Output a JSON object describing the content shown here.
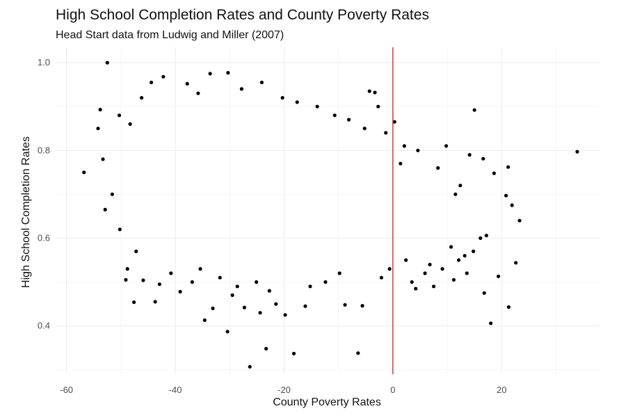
{
  "chart_data": {
    "type": "scatter",
    "title": "High School Completion Rates and County Poverty Rates",
    "subtitle": "Head Start data from Ludwig and Miller (2007)",
    "xlabel": "County Poverty Rates",
    "ylabel": "High School Completion Rates",
    "xlim": [
      -62,
      38
    ],
    "ylim": [
      0.29,
      1.035
    ],
    "x_ticks": [
      -60,
      -40,
      -20,
      0,
      20
    ],
    "y_ticks": [
      0.4,
      0.6,
      0.8,
      1.0
    ],
    "x_tick_labels": [
      "-60",
      "-40",
      "-20",
      "0",
      "20"
    ],
    "y_tick_labels": [
      "0.4",
      "0.6",
      "0.8",
      "1.0"
    ],
    "grid": true,
    "vline": {
      "x": 0,
      "color": "#e0151b"
    },
    "point_color": "#000000",
    "points": [
      [
        -52.5,
        1.0
      ],
      [
        -56.8,
        0.75
      ],
      [
        -52.9,
        0.665
      ],
      [
        33.9,
        0.797
      ],
      [
        15,
        0.892
      ],
      [
        0.3,
        0.865
      ],
      [
        -26.3,
        0.307
      ],
      [
        -18.2,
        0.337
      ],
      [
        -6.4,
        0.338
      ],
      [
        -23.3,
        0.348
      ],
      [
        -30.4,
        0.387
      ],
      [
        18,
        0.406
      ],
      [
        -34.6,
        0.413
      ],
      [
        -43.7,
        0.455
      ],
      [
        -47.6,
        0.454
      ],
      [
        21.3,
        0.443
      ],
      [
        23.3,
        0.64
      ],
      [
        21.9,
        0.675
      ],
      [
        20.8,
        0.697
      ],
      [
        22.6,
        0.544
      ],
      [
        21.2,
        0.762
      ],
      [
        19.4,
        0.513
      ],
      [
        18.6,
        0.748
      ],
      [
        16.6,
        0.781
      ],
      [
        16.8,
        0.475
      ],
      [
        17.2,
        0.606
      ],
      [
        9.8,
        0.81
      ],
      [
        8.3,
        0.76
      ],
      [
        -3.3,
        0.932
      ],
      [
        -4.3,
        0.935
      ],
      [
        -2.7,
        0.9
      ],
      [
        -33.6,
        0.975
      ],
      [
        -30.3,
        0.977
      ],
      [
        -42.2,
        0.968
      ],
      [
        -44.4,
        0.955
      ],
      [
        -37.8,
        0.952
      ],
      [
        -24.1,
        0.955
      ],
      [
        -48.3,
        0.86
      ],
      [
        -53.8,
        0.893
      ],
      [
        -49.1,
        0.505
      ],
      [
        -45.9,
        0.504
      ],
      [
        -33.1,
        0.44
      ],
      [
        -29.5,
        0.47
      ],
      [
        -27.3,
        0.442
      ],
      [
        -21.5,
        0.45
      ],
      [
        -19.8,
        0.425
      ],
      [
        -16.1,
        0.445
      ],
      [
        -8.8,
        0.448
      ],
      [
        -5.6,
        0.446
      ],
      [
        -24.4,
        0.43
      ],
      [
        -39.1,
        0.478
      ],
      [
        -42.9,
        0.495
      ],
      [
        4.2,
        0.485
      ],
      [
        7.5,
        0.49
      ],
      [
        11.2,
        0.505
      ],
      [
        13.6,
        0.52
      ],
      [
        2.4,
        0.55
      ],
      [
        6.8,
        0.54
      ],
      [
        13.2,
        0.56
      ],
      [
        10.7,
        0.58
      ],
      [
        -54.2,
        0.85
      ],
      [
        -53.3,
        0.78
      ],
      [
        -50.2,
        0.62
      ],
      [
        -51.6,
        0.7
      ],
      [
        -47.2,
        0.57
      ],
      [
        -48.8,
        0.53
      ],
      [
        -40.8,
        0.52
      ],
      [
        -36.9,
        0.5
      ],
      [
        -35.4,
        0.53
      ],
      [
        -31.8,
        0.51
      ],
      [
        -28.6,
        0.49
      ],
      [
        -25.1,
        0.5
      ],
      [
        -22.7,
        0.48
      ],
      [
        -15.2,
        0.49
      ],
      [
        -12.4,
        0.5
      ],
      [
        -9.8,
        0.52
      ],
      [
        -2.1,
        0.51
      ],
      [
        -0.6,
        0.53
      ],
      [
        3.5,
        0.5
      ],
      [
        5.9,
        0.52
      ],
      [
        9.1,
        0.53
      ],
      [
        12.1,
        0.55
      ],
      [
        14.8,
        0.57
      ],
      [
        16.1,
        0.6
      ],
      [
        14.1,
        0.79
      ],
      [
        12.4,
        0.72
      ],
      [
        11.5,
        0.7
      ],
      [
        4.6,
        0.8
      ],
      [
        2.1,
        0.81
      ],
      [
        1.4,
        0.77
      ],
      [
        -1.3,
        0.84
      ],
      [
        -5.2,
        0.85
      ],
      [
        -8.1,
        0.87
      ],
      [
        -10.7,
        0.88
      ],
      [
        -13.9,
        0.9
      ],
      [
        -17.6,
        0.91
      ],
      [
        -20.3,
        0.92
      ],
      [
        -27.8,
        0.94
      ],
      [
        -35.8,
        0.93
      ],
      [
        -46.2,
        0.92
      ],
      [
        -50.3,
        0.88
      ]
    ]
  }
}
